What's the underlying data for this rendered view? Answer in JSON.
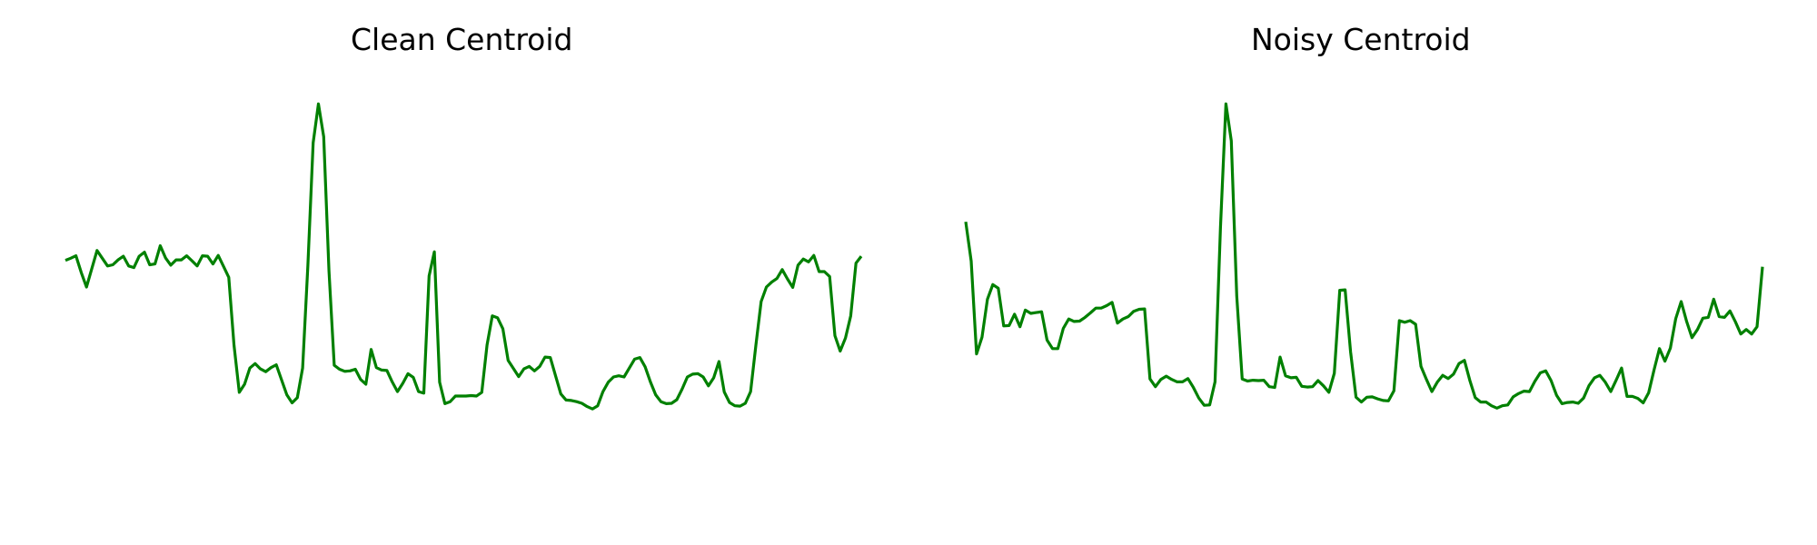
{
  "colors": {
    "line": "#008000",
    "background": "#ffffff",
    "text": "#000000"
  },
  "chart_data": [
    {
      "type": "line",
      "title": "Clean Centroid",
      "axes_visible": false,
      "grid": false,
      "xlim": [
        0,
        140
      ],
      "ylim": [
        0,
        100
      ],
      "series": [
        {
          "values": [
            57.5,
            58,
            58.6,
            54.5,
            50.9,
            55.4,
            59.9,
            58,
            56.1,
            56.4,
            57.6,
            58.5,
            56.1,
            55.7,
            58.5,
            59.5,
            56.4,
            56.6,
            61.1,
            58.1,
            56.3,
            57.6,
            57.6,
            58.6,
            57.4,
            56.1,
            58.6,
            58.5,
            56.6,
            58.7,
            56,
            53.3,
            36.5,
            24.9,
            26.9,
            30.9,
            32,
            30.7,
            30,
            31,
            31.7,
            28,
            24.3,
            22.3,
            23.6,
            30.9,
            56.3,
            86.5,
            96.1,
            88,
            54.9,
            31.6,
            30.6,
            30.1,
            30.2,
            30.6,
            28.1,
            26.9,
            35.5,
            31,
            30.4,
            30.3,
            27.5,
            25.1,
            27.1,
            29.5,
            28.6,
            25.1,
            24.7,
            53.6,
            59.6,
            27.4,
            22.1,
            22.6,
            24,
            24,
            24,
            24.1,
            24,
            24.9,
            36.6,
            43.8,
            43.3,
            40.6,
            32.8,
            30.8,
            28.8,
            30.7,
            31.3,
            30.2,
            31.3,
            33.6,
            33.5,
            29,
            24.5,
            23,
            22.9,
            22.6,
            22.2,
            21.4,
            20.8,
            21.6,
            25.1,
            27.4,
            28.7,
            29,
            28.7,
            30.9,
            33.1,
            33.5,
            31.2,
            27.5,
            24.3,
            22.6,
            22.1,
            22.2,
            23.1,
            25.7,
            28.7,
            29.4,
            29.5,
            28.7,
            26.5,
            28.5,
            32.5,
            25,
            22.4,
            21.6,
            21.5,
            22.2,
            25.1,
            36.5,
            47.3,
            50.9,
            52.1,
            53,
            55.2,
            52.9,
            50.8,
            56.3,
            57.8,
            57.1,
            58.7,
            54.7,
            54.7,
            53.5,
            38.9,
            35.1,
            38.3,
            43.8,
            56.8,
            58.5
          ]
        }
      ]
    },
    {
      "type": "line",
      "title": "Noisy Centroid",
      "axes_visible": false,
      "grid": false,
      "xlim": [
        0,
        140
      ],
      "ylim": [
        0,
        100
      ],
      "series": [
        {
          "values": [
            67,
            57.3,
            34.4,
            38.5,
            47.9,
            51.5,
            50.6,
            41.3,
            41.4,
            44.2,
            41.1,
            45.2,
            44.4,
            44.6,
            44.8,
            37.8,
            35.7,
            35.7,
            40.7,
            43,
            42.4,
            42.5,
            43.4,
            44.5,
            45.7,
            45.7,
            46.3,
            47.1,
            42,
            43,
            43.6,
            44.9,
            45.4,
            45.5,
            28.2,
            26.3,
            28.1,
            28.9,
            28.1,
            27.5,
            27.5,
            28.3,
            26.1,
            23.5,
            21.7,
            21.8,
            27.5,
            65.7,
            96.1,
            87,
            48.7,
            28.2,
            27.7,
            27.9,
            27.8,
            27.9,
            26.3,
            26.1,
            33.6,
            29,
            28.5,
            28.6,
            26.4,
            26.2,
            26.3,
            27.8,
            26.5,
            24.9,
            29.6,
            50.1,
            50.2,
            34.9,
            23.7,
            22.5,
            23.7,
            23.8,
            23.3,
            22.9,
            22.8,
            25.3,
            42.6,
            42.2,
            42.6,
            41.7,
            31.3,
            28.1,
            25.1,
            27.4,
            29.1,
            28.3,
            29.4,
            32,
            32.8,
            27.9,
            23.6,
            22.5,
            22.5,
            21.6,
            21,
            21.6,
            21.8,
            23.8,
            24.6,
            25.2,
            25.1,
            27.6,
            29.7,
            30.2,
            27.8,
            24.2,
            22.1,
            22.4,
            22.5,
            22.2,
            23.5,
            26.6,
            28.5,
            29.1,
            27.4,
            25.1,
            27.9,
            30.9,
            23.9,
            23.9,
            23.4,
            22.3,
            24.8,
            30.5,
            35.7,
            32.6,
            35.8,
            43.1,
            47.3,
            42.4,
            38.4,
            40.4,
            43.2,
            43.4,
            47.9,
            43.6,
            43.4,
            45,
            42.3,
            39.3,
            40.4,
            39.3,
            41.1,
            55.9
          ]
        }
      ]
    }
  ]
}
